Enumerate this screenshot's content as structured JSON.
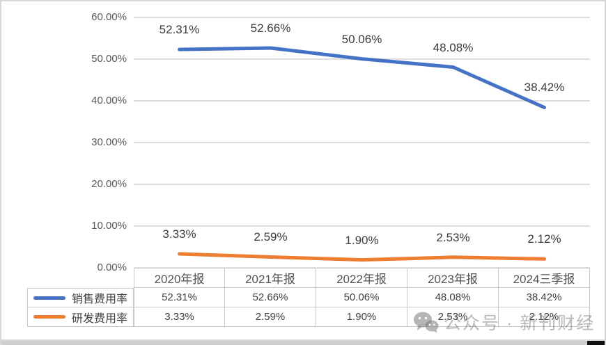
{
  "chart_data": {
    "type": "line",
    "title": "",
    "categories": [
      "2020年报",
      "2021年报",
      "2022年报",
      "2023年报",
      "2024三季报"
    ],
    "series": [
      {
        "name": "销售费用率",
        "color": "#4472C4",
        "values": [
          52.31,
          52.66,
          50.06,
          48.08,
          38.42
        ],
        "labels": [
          "52.31%",
          "52.66%",
          "50.06%",
          "48.08%",
          "38.42%"
        ]
      },
      {
        "name": "研发费用率",
        "color": "#ED7D31",
        "values": [
          3.33,
          2.59,
          1.9,
          2.53,
          2.12
        ],
        "labels": [
          "3.33%",
          "2.59%",
          "1.90%",
          "2.53%",
          "2.12%"
        ]
      }
    ],
    "y_axis": {
      "ticks": [
        "60.00%",
        "50.00%",
        "40.00%",
        "30.00%",
        "20.00%",
        "10.00%",
        "0.00%"
      ],
      "min": 0,
      "max": 60,
      "step": 10
    },
    "grid": true,
    "legend_position": "table-left"
  },
  "table": {
    "col_headers": [
      "2020年报",
      "2021年报",
      "2022年报",
      "2023年报",
      "2024三季报"
    ],
    "rows": [
      {
        "legend": "销售费用率",
        "swatch_color": "#4472C4",
        "cells": [
          "52.31%",
          "52.66%",
          "50.06%",
          "48.08%",
          "38.42%"
        ]
      },
      {
        "legend": "研发费用率",
        "swatch_color": "#ED7D31",
        "cells": [
          "3.33%",
          "2.59%",
          "1.90%",
          "2.53%",
          "2.12%"
        ]
      }
    ]
  },
  "watermark": {
    "icon": "wechat-icon",
    "text": "公众号 · 新刊财经"
  },
  "bottom_bar": {
    "progress_percent": 75
  },
  "colors": {
    "series_blue": "#4472C4",
    "series_orange": "#ED7D31",
    "gridline": "#DEDEDE",
    "axis_text": "#595959",
    "table_border": "#C9C9C9",
    "table_text": "#404040",
    "watermark_gray": "#8C8C8C"
  }
}
